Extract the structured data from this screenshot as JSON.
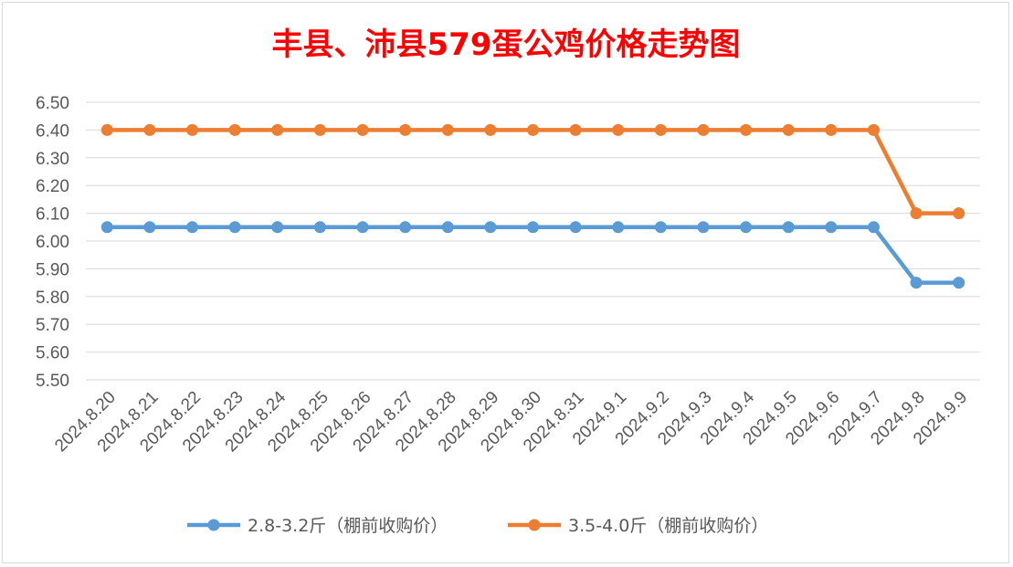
{
  "chart_data": {
    "type": "line",
    "title": "丰县、沛县579蛋公鸡价格走势图",
    "xlabel": "",
    "ylabel": "",
    "ylim": [
      5.5,
      6.5
    ],
    "yticks": [
      "6.50",
      "6.40",
      "6.30",
      "6.20",
      "6.10",
      "6.00",
      "5.90",
      "5.80",
      "5.70",
      "5.60",
      "5.50"
    ],
    "categories": [
      "2024.8.20",
      "2024.8.21",
      "2024.8.22",
      "2024.8.23",
      "2024.8.24",
      "2024.8.25",
      "2024.8.26",
      "2024.8.27",
      "2024.8.28",
      "2024.8.29",
      "2024.8.30",
      "2024.8.31",
      "2024.9.1",
      "2024.9.2",
      "2024.9.3",
      "2024.9.4",
      "2024.9.5",
      "2024.9.6",
      "2024.9.7",
      "2024.9.8",
      "2024.9.9"
    ],
    "series": [
      {
        "name": "2.8-3.2斤（棚前收购价）",
        "color": "#5b9bd5",
        "values": [
          6.05,
          6.05,
          6.05,
          6.05,
          6.05,
          6.05,
          6.05,
          6.05,
          6.05,
          6.05,
          6.05,
          6.05,
          6.05,
          6.05,
          6.05,
          6.05,
          6.05,
          6.05,
          6.05,
          5.85,
          5.85
        ]
      },
      {
        "name": "3.5-4.0斤（棚前收购价）",
        "color": "#ed7d31",
        "values": [
          6.4,
          6.4,
          6.4,
          6.4,
          6.4,
          6.4,
          6.4,
          6.4,
          6.4,
          6.4,
          6.4,
          6.4,
          6.4,
          6.4,
          6.4,
          6.4,
          6.4,
          6.4,
          6.4,
          6.1,
          6.1
        ]
      }
    ],
    "grid": true,
    "legend_position": "bottom"
  }
}
